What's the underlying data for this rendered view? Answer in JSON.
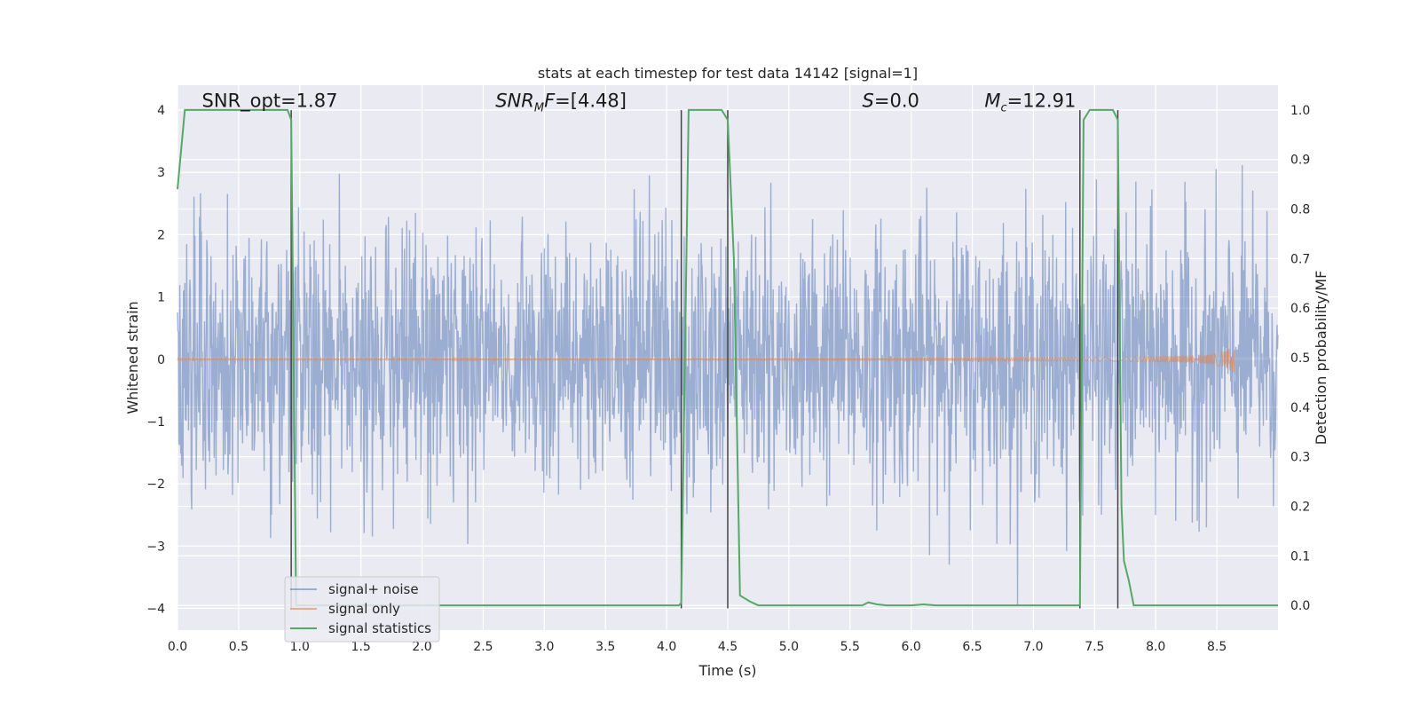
{
  "chart_data": {
    "type": "line",
    "title": "stats at each timestep for test data 14142 [signal=1]",
    "xlabel": "Time (s)",
    "ylabel_left": "Whitened strain",
    "ylabel_right": "Detection probability/MF",
    "xlim": [
      0.0,
      9.0
    ],
    "ylim_left": [
      -4.35,
      4.4
    ],
    "ylim_right": [
      -0.05,
      1.05
    ],
    "x_ticks": [
      0.0,
      0.5,
      1.0,
      1.5,
      2.0,
      2.5,
      3.0,
      3.5,
      4.0,
      4.5,
      5.0,
      5.5,
      6.0,
      6.5,
      7.0,
      7.5,
      8.0,
      8.5
    ],
    "x_tick_labels": [
      "0.0",
      "0.5",
      "1.0",
      "1.5",
      "2.0",
      "2.5",
      "3.0",
      "3.5",
      "4.0",
      "4.5",
      "5.0",
      "5.5",
      "6.0",
      "6.5",
      "7.0",
      "7.5",
      "8.0",
      "8.5"
    ],
    "y_left_ticks": [
      -4,
      -3,
      -2,
      -1,
      0,
      1,
      2,
      3,
      4
    ],
    "y_left_tick_labels": [
      "−4",
      "−3",
      "−2",
      "−1",
      "0",
      "1",
      "2",
      "3",
      "4"
    ],
    "y_right_ticks": [
      0.0,
      0.1,
      0.2,
      0.3,
      0.4,
      0.5,
      0.6,
      0.7,
      0.8,
      0.9,
      1.0
    ],
    "y_right_tick_labels": [
      "0.0",
      "0.1",
      "0.2",
      "0.3",
      "0.4",
      "0.5",
      "0.6",
      "0.7",
      "0.8",
      "0.9",
      "1.0"
    ],
    "grid": true,
    "legend_position": "lower-left",
    "annotations": [
      {
        "name": "snr-opt",
        "text": "SNR_opt=1.87",
        "x": 0.2,
        "y": 4.05
      },
      {
        "name": "snr-mf",
        "text": "SNR_MF=[4.48]",
        "x": 2.6,
        "y": 4.05
      },
      {
        "name": "s-stat",
        "text": "S=0.0",
        "x": 5.6,
        "y": 4.05
      },
      {
        "name": "chirp-mass",
        "text": "M_c=12.91",
        "x": 6.6,
        "y": 4.05
      }
    ],
    "vertical_lines": [
      0.93,
      4.12,
      4.5,
      7.38,
      7.69
    ],
    "vline_ymin": -4.0,
    "vline_ymax": 4.0,
    "series": [
      {
        "name": "signal+ noise",
        "color": "#4c72b0",
        "kind": "noise",
        "t_start": 0.0,
        "t_end": 9.0,
        "amplitude_std": 1.0
      },
      {
        "name": "signal only",
        "color": "#dd8452",
        "kind": "chirp",
        "t_start": 0.0,
        "t_end": 8.65,
        "peak_amplitude": 0.35
      },
      {
        "name": "signal statistics",
        "color": "#55a868",
        "axis": "right",
        "x": [
          0.0,
          0.06,
          0.1,
          0.2,
          0.5,
          0.8,
          0.9,
          0.93,
          0.97,
          1.0,
          1.5,
          2.0,
          2.5,
          3.0,
          3.5,
          4.0,
          4.1,
          4.12,
          4.18,
          4.3,
          4.45,
          4.5,
          4.55,
          4.6,
          4.68,
          4.75,
          4.85,
          5.0,
          5.5,
          5.6,
          5.65,
          5.72,
          5.8,
          6.0,
          6.1,
          6.2,
          6.5,
          7.0,
          7.3,
          7.38,
          7.41,
          7.46,
          7.5,
          7.65,
          7.69,
          7.72,
          7.74,
          7.78,
          7.82,
          8.0,
          8.5,
          9.0
        ],
        "y": [
          0.84,
          1.0,
          1.0,
          1.0,
          1.0,
          1.0,
          1.0,
          0.98,
          0.0,
          0.0,
          0.0,
          0.0,
          0.0,
          0.0,
          0.0,
          0.0,
          0.0,
          0.005,
          1.0,
          1.0,
          1.0,
          0.98,
          0.7,
          0.02,
          0.008,
          0.0,
          0.0,
          0.0,
          0.0,
          0.0,
          0.006,
          0.002,
          0.0,
          0.0,
          0.002,
          0.0,
          0.0,
          0.0,
          0.0,
          0.0,
          0.98,
          1.0,
          1.0,
          1.0,
          0.98,
          0.2,
          0.09,
          0.05,
          0.0,
          0.0,
          0.0,
          0.0
        ]
      }
    ]
  }
}
